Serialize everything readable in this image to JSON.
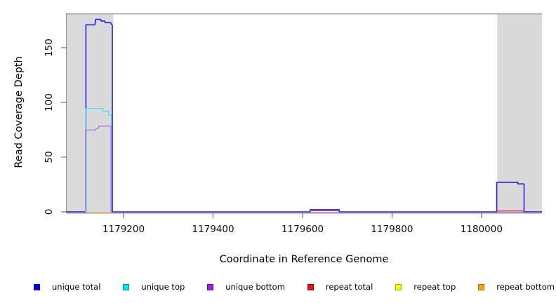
{
  "chart_data": {
    "type": "line",
    "title": "",
    "xlabel": "Coordinate in Reference Genome",
    "ylabel": "Read Coverage Depth",
    "xlim": [
      1179073,
      1180135
    ],
    "ylim": [
      0,
      181.5
    ],
    "x_ticks": [
      1179200,
      1179400,
      1179600,
      1179800,
      1180000
    ],
    "x_tick_labels": [
      "1179200",
      "1179400",
      "1179600",
      "1179800",
      "1180000"
    ],
    "y_ticks": [
      0,
      50,
      100,
      150
    ],
    "y_tick_labels": [
      "0",
      "50",
      "100",
      "150"
    ],
    "grid": false,
    "legend_position": "bottom",
    "shaded_regions": [
      {
        "name": "repeat-region-left",
        "x0": 1179076,
        "x1": 1179177,
        "color": "#dadada"
      },
      {
        "name": "repeat-region-right",
        "x0": 1180035,
        "x1": 1180135,
        "color": "#dadada"
      }
    ],
    "top_boundary_line": {
      "y": 181,
      "color": "#8f8f8f"
    },
    "series": [
      {
        "name": "unique total",
        "color": "#2222e0",
        "width": 1.6,
        "dy": 0,
        "segments": [
          [
            [
              1179073,
              0
            ],
            [
              1179116,
              0
            ],
            [
              1179116,
              171
            ],
            [
              1179136,
              171
            ],
            [
              1179138,
              176
            ],
            [
              1179149,
              176
            ],
            [
              1179150,
              174.5
            ],
            [
              1179158,
              174.5
            ],
            [
              1179159,
              173
            ],
            [
              1179171,
              173
            ],
            [
              1179175,
              170.5
            ],
            [
              1179175,
              0
            ],
            [
              1179617,
              0
            ],
            [
              1179617,
              2
            ],
            [
              1179682,
              2
            ],
            [
              1179682,
              0
            ],
            [
              1180034,
              0
            ],
            [
              1180034,
              27
            ],
            [
              1180081,
              27
            ],
            [
              1180081,
              25.5
            ],
            [
              1180095,
              25.5
            ],
            [
              1180095,
              0
            ],
            [
              1180135,
              0
            ]
          ]
        ]
      },
      {
        "name": "unique top",
        "color": "#55dded",
        "width": 1.4,
        "dy": 0,
        "segments": [
          [
            [
              1179116,
              0
            ],
            [
              1179116,
              94.5
            ],
            [
              1179154,
              94.5
            ],
            [
              1179155,
              92
            ],
            [
              1179166,
              92
            ],
            [
              1179167,
              88.5
            ],
            [
              1179173,
              88.5
            ],
            [
              1179173,
              0
            ]
          ]
        ]
      },
      {
        "name": "unique bottom",
        "color": "#a678de",
        "width": 1.3,
        "dy": 1,
        "segments": [
          [
            [
              1179073,
              0
            ],
            [
              1179115,
              0
            ],
            [
              1179115,
              75.5
            ],
            [
              1179138,
              75.5
            ],
            [
              1179139,
              77
            ],
            [
              1179144,
              77
            ],
            [
              1179145,
              79
            ],
            [
              1179172,
              79
            ],
            [
              1179172,
              0
            ],
            [
              1180135,
              0
            ]
          ]
        ]
      },
      {
        "name": "repeat total",
        "color": "#e03c46",
        "width": 1.3,
        "dy": 0,
        "segments": [
          [
            [
              1179617,
              1
            ],
            [
              1179682,
              1
            ]
          ],
          [
            [
              1180034,
              0.8
            ],
            [
              1180095,
              0.8
            ]
          ]
        ]
      },
      {
        "name": "repeat top",
        "color": "#ffff00",
        "width": 1.3,
        "dy": 0,
        "segments": []
      },
      {
        "name": "repeat bottom",
        "color": "#ff9d2e",
        "width": 1.6,
        "dy": 1.6,
        "segments": [
          [
            [
              1179116,
              0
            ],
            [
              1179175,
              0
            ]
          ]
        ]
      }
    ],
    "legend": {
      "items": [
        {
          "label": "unique total",
          "fill": "#0000ee",
          "edge": "#0000a0"
        },
        {
          "label": "unique top",
          "fill": "#00e6f0",
          "edge": "#00909e"
        },
        {
          "label": "unique bottom",
          "fill": "#a020f0",
          "edge": "#6e00b0"
        },
        {
          "label": "repeat total",
          "fill": "#ee1111",
          "edge": "#990000"
        },
        {
          "label": "repeat top",
          "fill": "#ffff00",
          "edge": "#a8a800"
        },
        {
          "label": "repeat bottom",
          "fill": "#ffa500",
          "edge": "#b06c00"
        }
      ]
    }
  }
}
